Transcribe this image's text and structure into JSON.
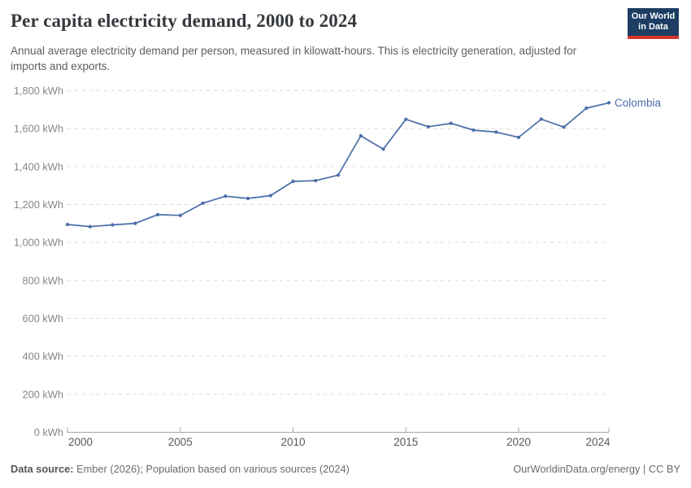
{
  "header": {
    "title": "Per capita electricity demand, 2000 to 2024",
    "subtitle": "Annual average electricity demand per person, measured in kilowatt-hours. This is electricity generation, adjusted for imports and exports.",
    "logo": {
      "line1": "Our World",
      "line2": "in Data",
      "bg_color": "#1d3d63",
      "accent_color": "#d7342c"
    }
  },
  "chart_data": {
    "type": "line",
    "title": "Per capita electricity demand, 2000 to 2024",
    "xlabel": "",
    "ylabel": "",
    "x": [
      2000,
      2001,
      2002,
      2003,
      2004,
      2005,
      2006,
      2007,
      2008,
      2009,
      2010,
      2011,
      2012,
      2013,
      2014,
      2015,
      2016,
      2017,
      2018,
      2019,
      2020,
      2021,
      2022,
      2023,
      2024
    ],
    "series": [
      {
        "name": "Colombia",
        "color": "#4a6da8",
        "values": [
          1095,
          1084,
          1093,
          1101,
          1147,
          1143,
          1207,
          1244,
          1232,
          1247,
          1322,
          1326,
          1355,
          1562,
          1492,
          1649,
          1610,
          1628,
          1592,
          1582,
          1554,
          1650,
          1608,
          1708,
          1736
        ]
      }
    ],
    "xlim": [
      2000,
      2024
    ],
    "ylim": [
      0,
      1800
    ],
    "y_ticks": [
      {
        "value": 0,
        "label": "0 kWh"
      },
      {
        "value": 200,
        "label": "200 kWh"
      },
      {
        "value": 400,
        "label": "400 kWh"
      },
      {
        "value": 600,
        "label": "600 kWh"
      },
      {
        "value": 800,
        "label": "800 kWh"
      },
      {
        "value": 1000,
        "label": "1,000 kWh"
      },
      {
        "value": 1200,
        "label": "1,200 kWh"
      },
      {
        "value": 1400,
        "label": "1,400 kWh"
      },
      {
        "value": 1600,
        "label": "1,600 kWh"
      },
      {
        "value": 1800,
        "label": "1,800 kWh"
      }
    ],
    "x_ticks": [
      {
        "value": 2000,
        "label": "2000"
      },
      {
        "value": 2005,
        "label": "2005"
      },
      {
        "value": 2010,
        "label": "2010"
      },
      {
        "value": 2015,
        "label": "2015"
      },
      {
        "value": 2020,
        "label": "2020"
      },
      {
        "value": 2024,
        "label": "2024"
      }
    ],
    "grid": "horizontal-dashed",
    "legend_position": "end-of-line-label"
  },
  "colors": {
    "gridline": "#dadada",
    "axis": "#a5a5a5",
    "y_tick_label": "#878787",
    "x_tick_label": "#585858"
  },
  "footer": {
    "source_label": "Data source:",
    "source_text": " Ember (2026); Population based on various sources (2024)",
    "credit": "OurWorldinData.org/energy | CC BY"
  }
}
